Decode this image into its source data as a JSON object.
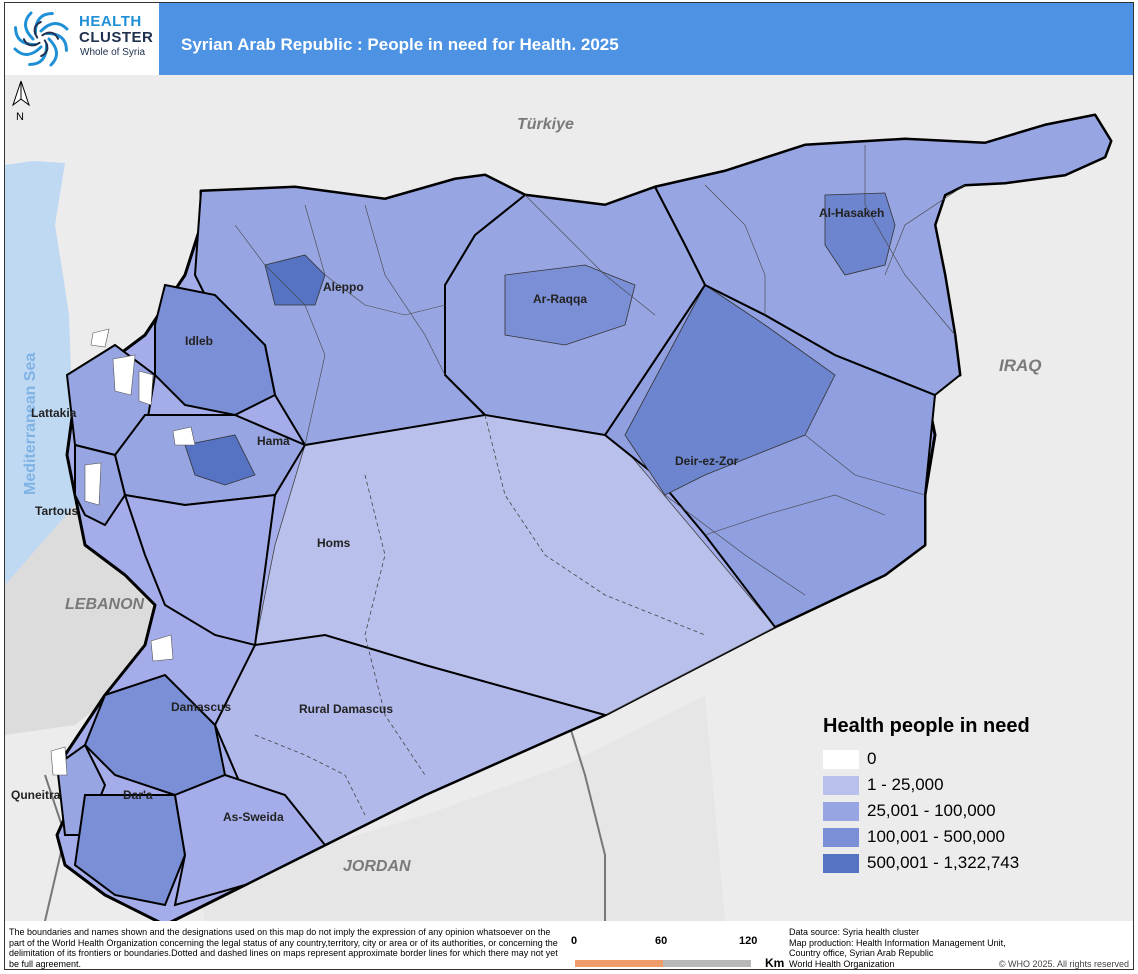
{
  "header": {
    "logo_line1": "HEALTH",
    "logo_line2": "CLUSTER",
    "logo_sub": "Whole of Syria",
    "title": "Syrian Arab Republic : People in need for Health. 2025"
  },
  "north_arrow": "N",
  "labels": {
    "countries": [
      "Türkiye",
      "IRAQ",
      "LEBANON",
      "JORDAN"
    ],
    "sea": "Mediterranean Sea",
    "governorates": [
      "Aleppo",
      "Ar-Raqqa",
      "Al-Hasakeh",
      "Idleb",
      "Lattakia",
      "Hama",
      "Deir-ez-Zor",
      "Tartous",
      "Homs",
      "Rural Damascus",
      "Damascus",
      "Quneitra",
      "Dar'a",
      "As-Sweida"
    ]
  },
  "legend": {
    "title": "Health people in need",
    "items": [
      {
        "label": "0",
        "color": "#ffffff"
      },
      {
        "label": "1 - 25,000",
        "color": "#b9c0ec"
      },
      {
        "label": "25,001 - 100,000",
        "color": "#97a5e2"
      },
      {
        "label": "100,001 - 500,000",
        "color": "#7b8fd6"
      },
      {
        "label": "500,001 - 1,322,743",
        "color": "#5673c3"
      }
    ]
  },
  "footer": {
    "disclaimer": "The boundaries and names shown and the designations used on this map do not imply the expression of any opinion whatsoever on the part of the World Health Organization concerning the legal status of any country,territory, city or area or of its authorities, or concerning the delimitation of its frontiers or boundaries.Dotted and dashed lines on maps represent approximate border lines for which there may not yet be full agreement.",
    "scale": {
      "ticks": [
        "0",
        "60",
        "120"
      ],
      "unit": "Km"
    },
    "credits": [
      "Data source: Syria health cluster",
      "Map production: Health Information Management Unit,",
      "Country office, Syrian Arab Republic",
      "World Health Organization"
    ],
    "copyright": "© WHO 2025. All rights reserved"
  }
}
